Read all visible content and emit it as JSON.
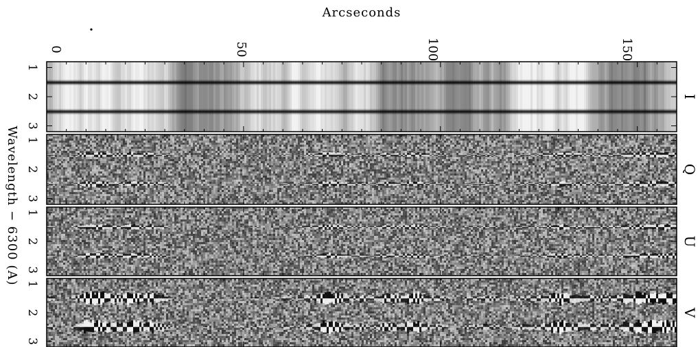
{
  "figure": {
    "top_axis_title": "Arcseconds",
    "top_ticks": [
      "0",
      "50",
      "100",
      "150"
    ],
    "left_axis_title": "Wavelength − 6300 (A)",
    "left_ticks": [
      "1",
      "2",
      "3"
    ],
    "panels": [
      {
        "label": "I",
        "kind": "intensity"
      },
      {
        "label": "Q",
        "kind": "polarization"
      },
      {
        "label": "U",
        "kind": "polarization"
      },
      {
        "label": "V",
        "kind": "circular"
      }
    ]
  },
  "chart_data": {
    "type": "heatmap",
    "x_axis": {
      "label": "Arcseconds",
      "range": [
        0,
        160
      ],
      "ticks": [
        0,
        50,
        100,
        150
      ]
    },
    "y_axis": {
      "label": "Wavelength − 6300 (A)",
      "range": [
        0.8,
        3.2
      ],
      "ticks": [
        1,
        2,
        3
      ]
    },
    "absorption_line_centers_A": [
      1.5,
      2.5
    ],
    "panels": [
      "I",
      "Q",
      "U",
      "V"
    ],
    "colormap": "grayscale"
  }
}
